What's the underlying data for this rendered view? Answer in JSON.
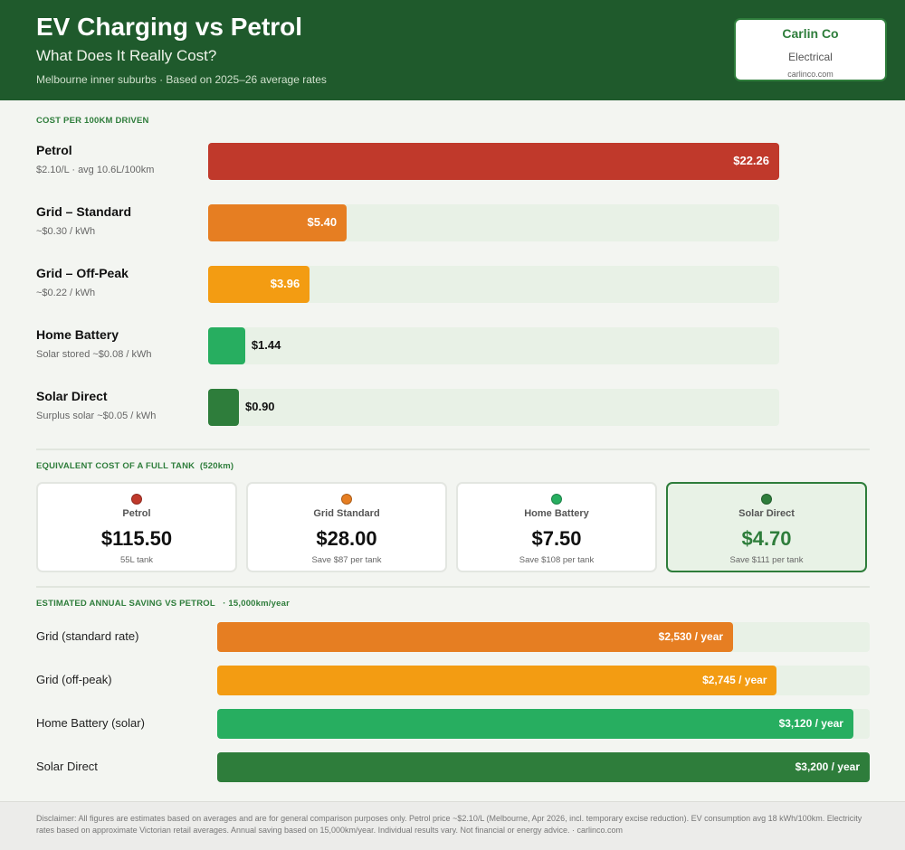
{
  "header": {
    "title": "EV Charging vs Petrol",
    "subtitle": "What Does It Really Cost?",
    "note": "Melbourne inner suburbs · Based on 2025–26 average rates",
    "brand_name": "Carlin Co",
    "brand_sub": "Electrical",
    "brand_url": "carlinco.com"
  },
  "colors": {
    "petrol": "#c0392b",
    "grid_standard": "#e67e22",
    "grid_offpeak": "#f39c12",
    "home_battery": "#27ae60",
    "solar_direct": "#2e7d3b",
    "header_bg": "#1f5a2c"
  },
  "sections": {
    "cost_per_100km": "COST PER 100KM DRIVEN",
    "full_tank": "EQUIVALENT COST OF A FULL TANK",
    "full_tank_note": "(520km)",
    "annual": "ESTIMATED ANNUAL SAVING VS PETROL",
    "annual_note": "· 15,000km/year"
  },
  "chart_data": [
    {
      "type": "bar",
      "title": "COST PER 100KM DRIVEN",
      "categories": [
        "Petrol",
        "Grid – Standard",
        "Grid – Off-Peak",
        "Home Battery",
        "Solar Direct"
      ],
      "subtitles": [
        "$2.10/L · avg 10.6L/100km",
        "~$0.30 / kWh",
        "~$0.22 / kWh",
        "Solar stored ~$0.08 / kWh",
        "Surplus solar ~$0.05 / kWh"
      ],
      "values": [
        22.26,
        5.4,
        3.96,
        1.44,
        0.9
      ],
      "labels": [
        "$22.26",
        "$5.40",
        "$3.96",
        "$1.44",
        "$0.90"
      ],
      "xlim": [
        0,
        22.26
      ],
      "orientation": "horizontal"
    },
    {
      "type": "table",
      "title": "EQUIVALENT COST OF A FULL TANK",
      "subtitle": "(520km)",
      "cards": [
        {
          "name": "Petrol",
          "price": "$115.50",
          "note": "55L tank",
          "color": "#c0392b",
          "highlight": false
        },
        {
          "name": "Grid Standard",
          "price": "$28.00",
          "note": "Save $87 per tank",
          "color": "#e67e22",
          "highlight": false
        },
        {
          "name": "Home Battery",
          "price": "$7.50",
          "note": "Save $108 per tank",
          "color": "#27ae60",
          "highlight": false
        },
        {
          "name": "Solar Direct",
          "price": "$4.70",
          "note": "Save $111 per tank",
          "color": "#2e7d3b",
          "highlight": true
        }
      ]
    },
    {
      "type": "bar",
      "title": "ESTIMATED ANNUAL SAVING VS PETROL",
      "subtitle": "· 15,000km/year",
      "categories": [
        "Grid (standard rate)",
        "Grid (off-peak)",
        "Home Battery (solar)",
        "Solar Direct"
      ],
      "values": [
        2530,
        2745,
        3120,
        3200
      ],
      "labels": [
        "$2,530 / year",
        "$2,745 / year",
        "$3,120 / year",
        "$3,200 / year"
      ],
      "xlim": [
        0,
        3200
      ],
      "orientation": "horizontal"
    }
  ],
  "footer": {
    "disclaimer": "Disclaimer: All figures are estimates based on averages and are for general comparison purposes only. Petrol price ~$2.10/L (Melbourne, Apr 2026, incl. temporary excise reduction). EV consumption avg 18 kWh/100km. Electricity rates based on approximate Victorian retail averages. Annual saving based on 15,000km/year. Individual results vary. Not financial or energy advice. · carlinco.com"
  }
}
